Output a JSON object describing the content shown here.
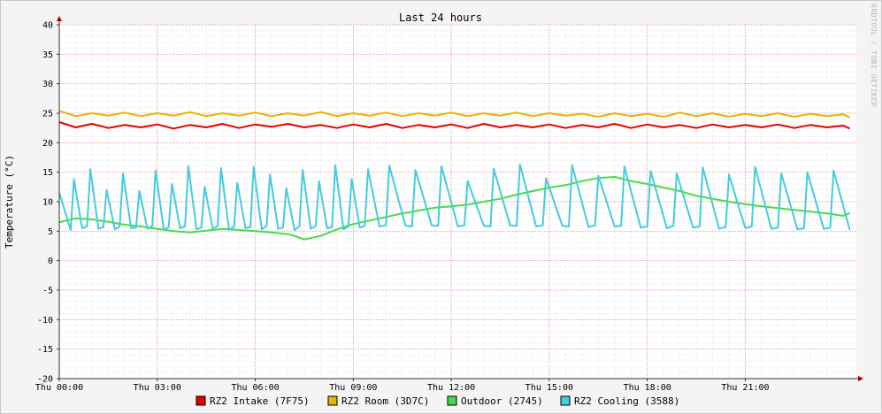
{
  "chart_data": {
    "type": "line",
    "title": "Last 24 hours",
    "ylabel": "Temperature (°C)",
    "xlabel": "",
    "watermark": "RRDTOOL / TOBI OETIKER",
    "ylim": [
      -20,
      40
    ],
    "yticks": [
      40,
      35,
      30,
      25,
      20,
      15,
      10,
      5,
      0,
      -5,
      -10,
      -15,
      -20
    ],
    "xlim": [
      0,
      24.4
    ],
    "xticks": [
      {
        "hour": 0,
        "label": "Thu 00:00"
      },
      {
        "hour": 3,
        "label": "Thu 03:00"
      },
      {
        "hour": 6,
        "label": "Thu 06:00"
      },
      {
        "hour": 9,
        "label": "Thu 09:00"
      },
      {
        "hour": 12,
        "label": "Thu 12:00"
      },
      {
        "hour": 15,
        "label": "Thu 15:00"
      },
      {
        "hour": 18,
        "label": "Thu 18:00"
      },
      {
        "hour": 21,
        "label": "Thu 21:00"
      }
    ],
    "grid": true,
    "legend_position": "bottom",
    "series": [
      {
        "name": "RZ2 Intake (7F75)",
        "color": "#e60000",
        "x": [
          0,
          0.5,
          1,
          1.5,
          2,
          2.5,
          3,
          3.5,
          4,
          4.5,
          5,
          5.5,
          6,
          6.5,
          7,
          7.5,
          8,
          8.5,
          9,
          9.5,
          10,
          10.5,
          11,
          11.5,
          12,
          12.5,
          13,
          13.5,
          14,
          14.5,
          15,
          15.5,
          16,
          16.5,
          17,
          17.5,
          18,
          18.5,
          19,
          19.5,
          20,
          20.5,
          21,
          21.5,
          22,
          22.5,
          23,
          23.5,
          24,
          24.2
        ],
        "y": [
          23.5,
          22.6,
          23.2,
          22.5,
          23.0,
          22.6,
          23.1,
          22.4,
          23.0,
          22.6,
          23.2,
          22.5,
          23.1,
          22.7,
          23.2,
          22.6,
          23.0,
          22.5,
          23.1,
          22.6,
          23.2,
          22.5,
          23.0,
          22.6,
          23.1,
          22.5,
          23.2,
          22.6,
          23.0,
          22.6,
          23.1,
          22.5,
          23.0,
          22.6,
          23.2,
          22.5,
          23.1,
          22.6,
          23.0,
          22.5,
          23.1,
          22.6,
          23.0,
          22.6,
          23.1,
          22.5,
          23.0,
          22.6,
          22.9,
          22.4
        ]
      },
      {
        "name": "RZ2 Room (3D7C)",
        "color": "#e6b400",
        "x": [
          0,
          0.5,
          1,
          1.5,
          2,
          2.5,
          3,
          3.5,
          4,
          4.5,
          5,
          5.5,
          6,
          6.5,
          7,
          7.5,
          8,
          8.5,
          9,
          9.5,
          10,
          10.5,
          11,
          11.5,
          12,
          12.5,
          13,
          13.5,
          14,
          14.5,
          15,
          15.5,
          16,
          16.5,
          17,
          17.5,
          18,
          18.5,
          19,
          19.5,
          20,
          20.5,
          21,
          21.5,
          22,
          22.5,
          23,
          23.5,
          24,
          24.2
        ],
        "y": [
          25.4,
          24.5,
          25.0,
          24.6,
          25.1,
          24.5,
          25.0,
          24.6,
          25.2,
          24.5,
          25.0,
          24.6,
          25.1,
          24.5,
          25.0,
          24.6,
          25.2,
          24.5,
          25.0,
          24.6,
          25.1,
          24.5,
          25.0,
          24.6,
          25.1,
          24.5,
          25.0,
          24.6,
          25.1,
          24.5,
          25.0,
          24.6,
          24.9,
          24.4,
          25.0,
          24.5,
          24.9,
          24.4,
          25.1,
          24.5,
          25.0,
          24.4,
          24.9,
          24.5,
          25.0,
          24.4,
          24.9,
          24.5,
          24.8,
          24.3
        ]
      },
      {
        "name": "Outdoor (2745)",
        "color": "#44dd44",
        "x": [
          0,
          0.5,
          1,
          1.5,
          2,
          2.5,
          3,
          3.5,
          4,
          4.5,
          5,
          5.5,
          6,
          6.5,
          7,
          7.2,
          7.5,
          8,
          8.5,
          9,
          9.5,
          10,
          10.5,
          11,
          11.5,
          12,
          12.5,
          13,
          13.5,
          14,
          14.5,
          15,
          15.5,
          16,
          16.5,
          17,
          17.5,
          18,
          18.5,
          19,
          19.5,
          20,
          20.5,
          21,
          21.5,
          22,
          22.5,
          23,
          23.5,
          24,
          24.2
        ],
        "y": [
          6.5,
          7.2,
          7.0,
          6.6,
          6.1,
          5.8,
          5.4,
          5.0,
          4.8,
          5.1,
          5.4,
          5.2,
          5.0,
          4.8,
          4.5,
          4.2,
          3.6,
          4.2,
          5.3,
          6.2,
          6.8,
          7.4,
          8.0,
          8.5,
          9.0,
          9.2,
          9.5,
          10.0,
          10.5,
          11.2,
          11.8,
          12.4,
          12.8,
          13.5,
          14.0,
          14.2,
          13.5,
          13.0,
          12.4,
          11.8,
          11.0,
          10.5,
          10.0,
          9.6,
          9.2,
          8.9,
          8.6,
          8.3,
          8.0,
          7.6,
          8.1
        ]
      },
      {
        "name": "RZ2 Cooling (3588)",
        "color": "#44ccdd",
        "x": [
          0,
          0.35,
          0.45,
          0.7,
          0.85,
          0.95,
          1.2,
          1.35,
          1.45,
          1.7,
          1.85,
          1.95,
          2.2,
          2.35,
          2.45,
          2.7,
          2.85,
          2.95,
          3.2,
          3.35,
          3.45,
          3.7,
          3.85,
          3.95,
          4.2,
          4.35,
          4.45,
          4.7,
          4.85,
          4.95,
          5.2,
          5.35,
          5.45,
          5.7,
          5.85,
          5.95,
          6.2,
          6.35,
          6.45,
          6.7,
          6.85,
          6.95,
          7.2,
          7.35,
          7.45,
          7.7,
          7.85,
          7.95,
          8.2,
          8.35,
          8.45,
          8.7,
          8.85,
          8.95,
          9.2,
          9.35,
          9.45,
          9.8,
          10.0,
          10.1,
          10.6,
          10.8,
          10.9,
          11.4,
          11.6,
          11.7,
          12.2,
          12.4,
          12.5,
          13.0,
          13.2,
          13.3,
          13.8,
          14.0,
          14.1,
          14.6,
          14.8,
          14.9,
          15.4,
          15.6,
          15.7,
          16.2,
          16.4,
          16.5,
          17.0,
          17.2,
          17.3,
          17.8,
          18.0,
          18.1,
          18.6,
          18.8,
          18.9,
          19.4,
          19.6,
          19.7,
          20.2,
          20.4,
          20.5,
          21.0,
          21.2,
          21.3,
          21.8,
          22.0,
          22.1,
          22.6,
          22.8,
          22.9,
          23.4,
          23.6,
          23.7,
          24.2
        ],
        "y": [
          11.5,
          5.2,
          13.8,
          5.5,
          5.8,
          15.5,
          5.4,
          5.7,
          12.0,
          5.3,
          5.8,
          14.8,
          5.5,
          5.6,
          11.8,
          5.4,
          5.9,
          15.3,
          5.2,
          5.7,
          13.0,
          5.5,
          5.8,
          16.0,
          5.3,
          5.6,
          12.5,
          5.4,
          5.9,
          15.7,
          5.2,
          5.8,
          13.2,
          5.5,
          5.7,
          15.9,
          5.3,
          5.9,
          14.6,
          5.4,
          5.6,
          12.3,
          5.2,
          5.8,
          15.4,
          5.4,
          5.9,
          13.5,
          5.5,
          5.7,
          16.2,
          5.3,
          5.8,
          13.8,
          5.6,
          5.9,
          15.5,
          5.8,
          6.0,
          16.1,
          5.9,
          5.8,
          15.4,
          6.0,
          5.9,
          16.0,
          5.8,
          6.0,
          13.5,
          5.9,
          5.8,
          15.6,
          6.0,
          5.9,
          16.3,
          5.8,
          6.0,
          14.0,
          5.9,
          5.8,
          16.2,
          5.7,
          6.0,
          14.4,
          5.8,
          5.9,
          16.0,
          5.6,
          5.8,
          15.2,
          5.5,
          5.9,
          14.8,
          5.6,
          5.8,
          15.8,
          5.4,
          5.7,
          14.6,
          5.5,
          5.8,
          15.9,
          5.4,
          5.6,
          14.8,
          5.3,
          5.5,
          15.0,
          5.4,
          5.6,
          15.3,
          5.2
        ]
      }
    ]
  }
}
